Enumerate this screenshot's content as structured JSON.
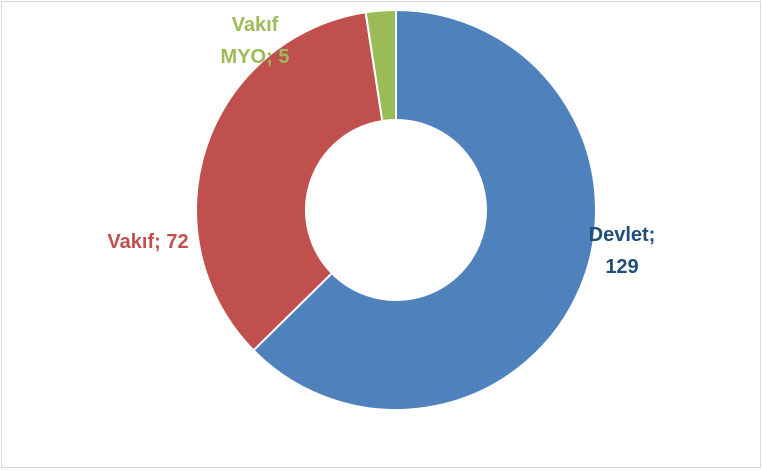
{
  "chart_data": {
    "type": "donut",
    "categories": [
      "Devlet",
      "Vakıf",
      "Vakıf MYO"
    ],
    "values": [
      129,
      72,
      5
    ],
    "value_labels": [
      "Devlet; 129",
      "Vakıf; 72",
      "Vakıf MYO; 5"
    ],
    "colors": [
      "#4f81bd",
      "#c0504d",
      "#9bbb59"
    ],
    "label_colors": [
      "#1f4e79",
      "#c0504d",
      "#9bbb59"
    ]
  }
}
